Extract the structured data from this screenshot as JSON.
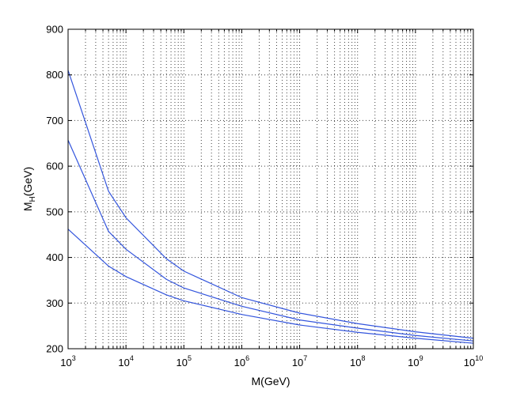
{
  "chart_data": {
    "type": "line",
    "title": "",
    "xlabel": "M(GeV)",
    "ylabel": {
      "main": "M",
      "subscript": "H",
      "suffix": "(GeV)"
    },
    "x_scale": "log",
    "xlim": [
      1000,
      10000000000
    ],
    "ylim": [
      200,
      900
    ],
    "x_ticks": [
      {
        "base": "10",
        "exp": "3",
        "value": 1000
      },
      {
        "base": "10",
        "exp": "4",
        "value": 10000
      },
      {
        "base": "10",
        "exp": "5",
        "value": 100000
      },
      {
        "base": "10",
        "exp": "6",
        "value": 1000000
      },
      {
        "base": "10",
        "exp": "7",
        "value": 10000000
      },
      {
        "base": "10",
        "exp": "8",
        "value": 100000000
      },
      {
        "base": "10",
        "exp": "9",
        "value": 1000000000
      },
      {
        "base": "10",
        "exp": "10",
        "value": 10000000000
      }
    ],
    "y_ticks": [
      200,
      300,
      400,
      500,
      600,
      700,
      800,
      900
    ],
    "grid": true,
    "line_color": "#3355dd",
    "series": [
      {
        "x": [
          1000,
          5000,
          10000,
          50000,
          100000,
          1000000,
          10000000,
          100000000,
          1000000000,
          10000000000
        ],
        "y": [
          810,
          545,
          487,
          397,
          370,
          312,
          278,
          255,
          237,
          223
        ]
      },
      {
        "x": [
          1000,
          5000,
          10000,
          50000,
          100000,
          1000000,
          10000000,
          100000000,
          1000000000,
          10000000000
        ],
        "y": [
          657,
          457,
          418,
          352,
          333,
          293,
          263,
          245,
          229,
          217
        ]
      },
      {
        "x": [
          1000,
          5000,
          10000,
          50000,
          100000,
          1000000,
          10000000,
          100000000,
          1000000000,
          10000000000
        ],
        "y": [
          462,
          381,
          358,
          318,
          305,
          275,
          252,
          236,
          223,
          212
        ]
      }
    ]
  }
}
